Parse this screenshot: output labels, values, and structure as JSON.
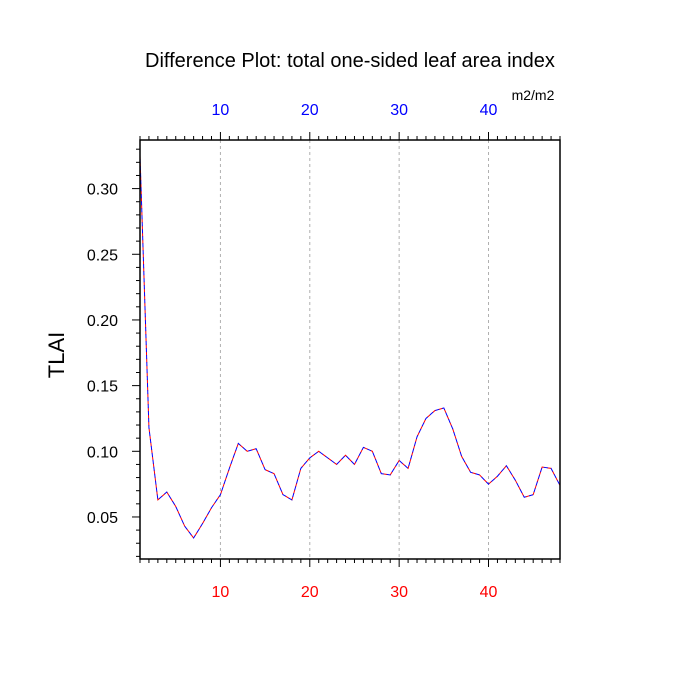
{
  "chart_data": {
    "type": "line",
    "title": "Difference Plot: total one-sided leaf area index",
    "units": "m2/m2",
    "ylabel": "TLAI",
    "xlabel": "",
    "xlim": [
      1,
      48
    ],
    "ylim": [
      0.018,
      0.337
    ],
    "x_ticks": [
      10,
      20,
      30,
      40
    ],
    "y_ticks": [
      0.05,
      0.1,
      0.15,
      0.2,
      0.25,
      0.3
    ],
    "y_tick_labels": [
      "0.05",
      "0.10",
      "0.15",
      "0.20",
      "0.25",
      "0.30"
    ],
    "grid": "vertical-dashed",
    "colors": {
      "bottom_tick_labels": "#ff0000",
      "top_tick_labels": "#0000ff",
      "series_a": "#ff0000",
      "series_b": "#0000ff"
    },
    "x": [
      1,
      2,
      3,
      4,
      5,
      6,
      7,
      8,
      9,
      10,
      11,
      12,
      13,
      14,
      15,
      16,
      17,
      18,
      19,
      20,
      21,
      22,
      23,
      24,
      25,
      26,
      27,
      28,
      29,
      30,
      31,
      32,
      33,
      34,
      35,
      36,
      37,
      38,
      39,
      40,
      41,
      42,
      43,
      44,
      45,
      46,
      47,
      48
    ],
    "series": [
      {
        "values": [
          0.325,
          0.118,
          0.063,
          0.069,
          0.058,
          0.043,
          0.034,
          0.045,
          0.057,
          0.067,
          0.087,
          0.106,
          0.1,
          0.102,
          0.086,
          0.083,
          0.067,
          0.063,
          0.087,
          0.095,
          0.1,
          0.095,
          0.09,
          0.097,
          0.09,
          0.103,
          0.1,
          0.083,
          0.082,
          0.093,
          0.087,
          0.111,
          0.125,
          0.131,
          0.133,
          0.117,
          0.096,
          0.084,
          0.082,
          0.075,
          0.081,
          0.089,
          0.078,
          0.065,
          0.067,
          0.088,
          0.087,
          0.074
        ]
      },
      {
        "values": [
          0.325,
          0.118,
          0.063,
          0.069,
          0.058,
          0.043,
          0.034,
          0.045,
          0.057,
          0.067,
          0.087,
          0.106,
          0.1,
          0.102,
          0.086,
          0.083,
          0.067,
          0.063,
          0.087,
          0.095,
          0.1,
          0.095,
          0.09,
          0.097,
          0.09,
          0.103,
          0.1,
          0.083,
          0.082,
          0.093,
          0.087,
          0.111,
          0.125,
          0.131,
          0.133,
          0.117,
          0.096,
          0.084,
          0.082,
          0.075,
          0.081,
          0.089,
          0.078,
          0.065,
          0.067,
          0.088,
          0.087,
          0.074
        ]
      }
    ]
  }
}
